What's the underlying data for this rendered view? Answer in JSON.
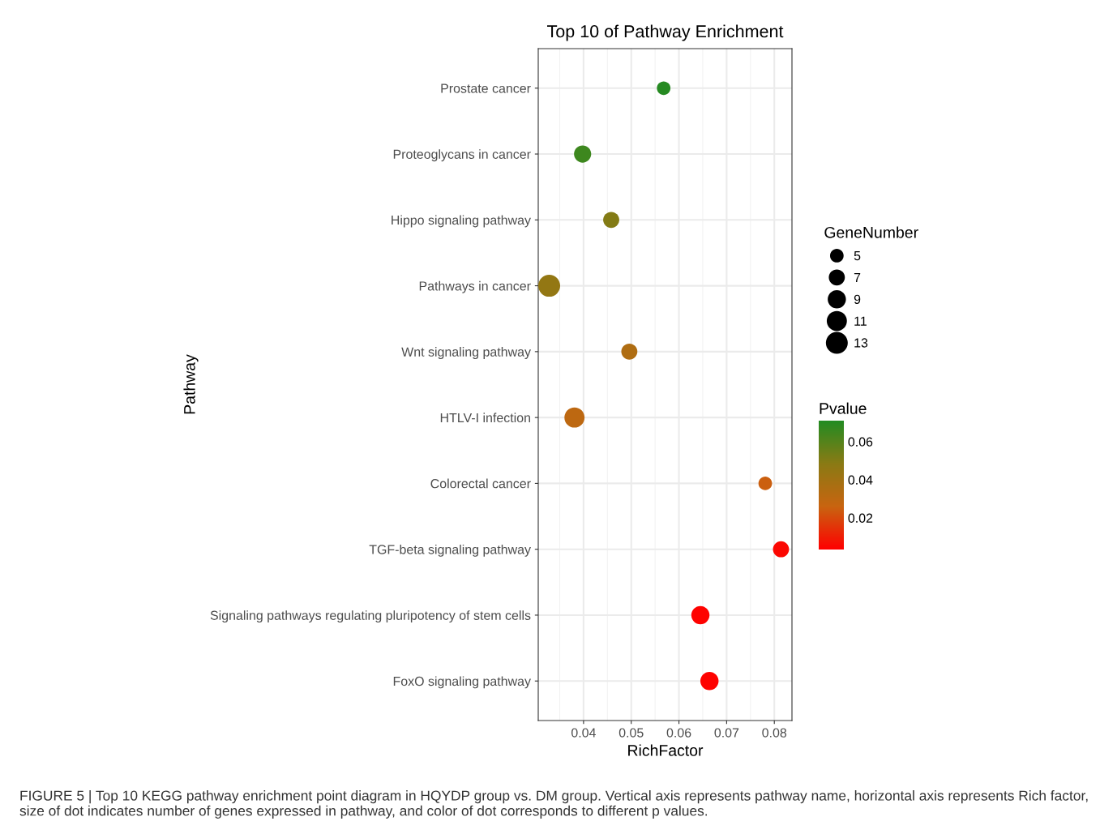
{
  "chart_data": {
    "type": "bubble",
    "orientation": "horizontal",
    "title": "Top 10 of Pathway Enrichment",
    "xlabel": "RichFactor",
    "ylabel": "Pathway",
    "legend_title": "GeneNumber",
    "clabel": "Pvalue",
    "categories": [
      "Prostate cancer",
      "Proteoglycans in cancer",
      "Hippo signaling pathway",
      "Pathways in cancer",
      "Wnt signaling pathway",
      "HTLV-I infection",
      "Colorectal cancer",
      "TGF-beta signaling pathway",
      "Signaling pathways regulating pluripotency of stem cells",
      "FoxO signaling pathway"
    ],
    "values": [
      0.0568,
      0.0398,
      0.0458,
      0.0328,
      0.0496,
      0.0381,
      0.0781,
      0.0814,
      0.0645,
      0.0664
    ],
    "sizes": [
      5,
      8,
      7,
      13,
      7,
      11,
      5,
      7,
      9,
      9
    ],
    "size_legend": [
      5,
      7,
      9,
      11,
      13
    ],
    "cvalues": [
      0.07,
      0.065,
      0.05,
      0.045,
      0.035,
      0.03,
      0.025,
      0.005,
      0.004,
      0.004
    ],
    "clim": [
      0.0034,
      0.071
    ],
    "cticks": [
      0.02,
      0.04,
      0.06
    ],
    "xlim": [
      0.0305,
      0.0837
    ],
    "xticks": [
      0.04,
      0.05,
      0.06,
      0.07,
      0.08
    ],
    "grid": true,
    "marker": "circle",
    "annotations": [
      "FIGURE 5 | Top 10 KEGG pathway enrichment point diagram in HQYDP group vs. DM group. Vertical axis represents pathway name, horizontal axis represents Rich factor, size of dot indicates number of genes expressed in pathway, and color of dot corresponds to different p values."
    ]
  }
}
